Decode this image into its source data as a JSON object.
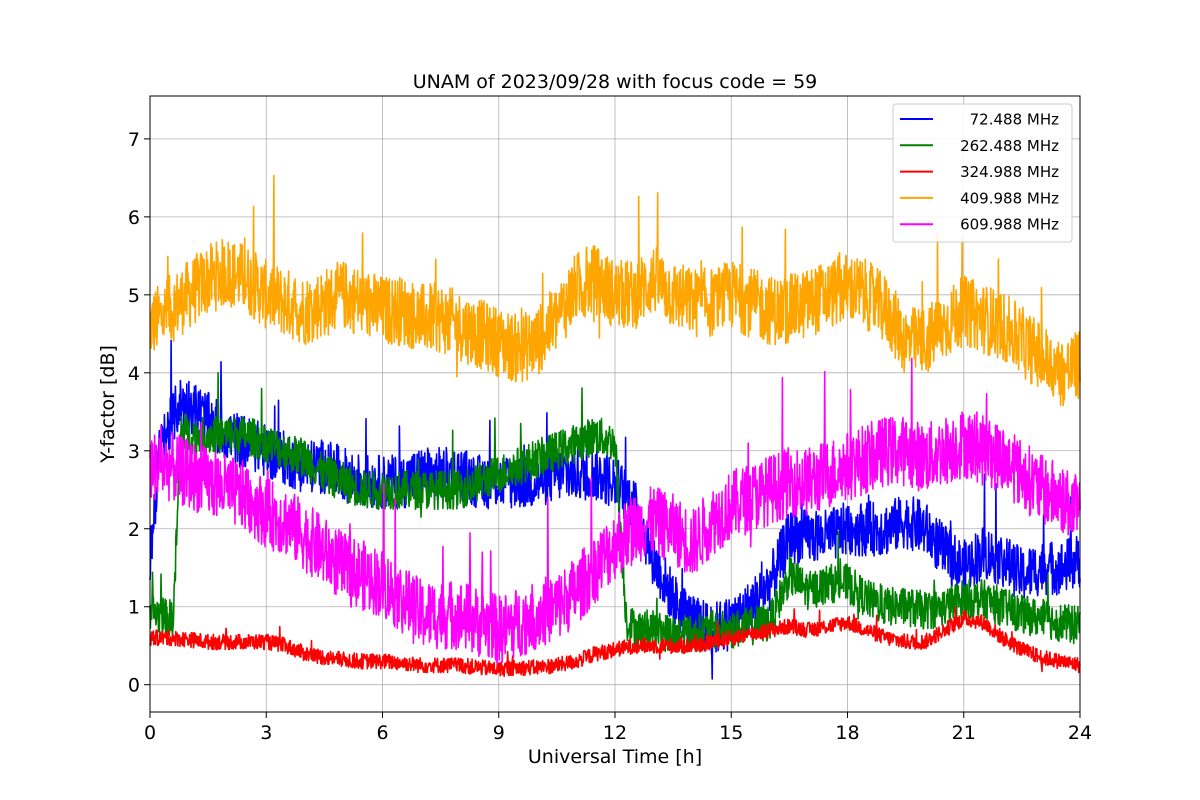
{
  "chart_data": {
    "type": "line",
    "title": "UNAM of 2023/09/28 with focus code = 59",
    "xlabel": "Universal Time [h]",
    "ylabel": "Y-factor [dB]",
    "xlim": [
      0,
      24
    ],
    "ylim": [
      -0.35,
      7.55
    ],
    "xticks": [
      0,
      3,
      6,
      9,
      12,
      15,
      18,
      21,
      24
    ],
    "yticks": [
      0,
      1,
      2,
      3,
      4,
      5,
      6,
      7
    ],
    "grid": true,
    "legend_position": "top-right",
    "series": [
      {
        "name": " 72.488 MHz",
        "color": "#0000ff",
        "x": [
          0,
          0.25,
          0.5,
          0.75,
          1,
          1.5,
          2,
          2.5,
          3,
          3.5,
          4,
          4.5,
          5,
          5.5,
          6,
          6.5,
          7,
          7.5,
          8,
          8.5,
          9,
          9.5,
          10,
          10.5,
          11,
          11.5,
          12,
          12.5,
          13,
          13.5,
          14,
          14.5,
          15,
          15.5,
          16,
          16.5,
          17,
          17.5,
          18,
          18.5,
          19,
          19.5,
          20,
          20.5,
          21,
          21.5,
          22,
          22.5,
          23,
          23.5,
          24
        ],
        "y": [
          1.6,
          3.0,
          3.3,
          3.6,
          3.6,
          3.4,
          3.2,
          3.1,
          3.0,
          2.9,
          2.8,
          2.8,
          2.7,
          2.6,
          2.6,
          2.6,
          2.7,
          2.7,
          2.7,
          2.6,
          2.6,
          2.6,
          2.6,
          2.7,
          2.7,
          2.7,
          2.6,
          2.3,
          1.6,
          1.1,
          0.8,
          0.7,
          0.8,
          1.0,
          1.3,
          1.9,
          1.9,
          1.9,
          2.0,
          2.0,
          2.0,
          2.1,
          2.0,
          1.7,
          1.5,
          1.7,
          1.6,
          1.4,
          1.5,
          1.5,
          1.6
        ],
        "noise": 0.35
      },
      {
        "name": "262.488 MHz",
        "color": "#008000",
        "x": [
          0,
          0.2,
          0.4,
          0.6,
          0.8,
          1,
          1.5,
          2,
          2.5,
          3,
          3.5,
          4,
          4.5,
          5,
          5.5,
          6,
          6.5,
          7,
          7.5,
          8,
          8.5,
          9,
          9.5,
          10,
          10.5,
          11,
          11.5,
          12,
          12.3,
          12.6,
          13,
          13.5,
          14,
          14.5,
          15,
          15.5,
          16,
          16.5,
          17,
          17.5,
          18,
          18.5,
          19,
          19.5,
          20,
          20.5,
          21,
          21.5,
          22,
          22.5,
          23,
          23.5,
          24
        ],
        "y": [
          0.95,
          0.9,
          0.85,
          0.85,
          3.3,
          3.2,
          3.2,
          3.2,
          3.2,
          3.1,
          3.0,
          2.9,
          2.7,
          2.6,
          2.5,
          2.5,
          2.5,
          2.5,
          2.5,
          2.5,
          2.6,
          2.7,
          2.8,
          2.9,
          3.0,
          3.1,
          3.2,
          3.1,
          0.8,
          0.7,
          0.7,
          0.65,
          0.65,
          0.7,
          0.7,
          0.75,
          0.8,
          1.4,
          1.2,
          1.3,
          1.3,
          1.1,
          1.0,
          1.0,
          0.95,
          1.0,
          1.1,
          1.1,
          1.0,
          0.9,
          0.85,
          0.8,
          0.75
        ],
        "noise": 0.25
      },
      {
        "name": "324.988 MHz",
        "color": "#ff0000",
        "x": [
          0,
          0.5,
          1,
          1.5,
          2,
          2.5,
          3,
          3.5,
          4,
          4.5,
          5,
          5.5,
          6,
          6.5,
          7,
          7.5,
          8,
          8.5,
          9,
          9.5,
          10,
          10.5,
          11,
          11.5,
          12,
          12.5,
          13,
          13.5,
          14,
          14.5,
          15,
          15.5,
          16,
          16.5,
          17,
          17.5,
          18,
          18.5,
          19,
          19.5,
          20,
          20.5,
          21,
          21.5,
          22,
          22.5,
          23,
          23.5,
          24
        ],
        "y": [
          0.6,
          0.6,
          0.58,
          0.55,
          0.55,
          0.55,
          0.55,
          0.5,
          0.4,
          0.35,
          0.32,
          0.3,
          0.3,
          0.28,
          0.25,
          0.25,
          0.25,
          0.22,
          0.2,
          0.22,
          0.22,
          0.25,
          0.3,
          0.4,
          0.45,
          0.5,
          0.5,
          0.5,
          0.5,
          0.55,
          0.6,
          0.65,
          0.7,
          0.75,
          0.7,
          0.75,
          0.8,
          0.7,
          0.6,
          0.55,
          0.55,
          0.7,
          0.85,
          0.8,
          0.6,
          0.45,
          0.35,
          0.3,
          0.25
        ],
        "noise": 0.1
      },
      {
        "name": "409.988 MHz",
        "color": "#ffa500",
        "x": [
          0,
          0.5,
          1,
          1.5,
          2,
          2.5,
          3,
          3.5,
          4,
          4.5,
          5,
          5.5,
          6,
          6.5,
          7,
          7.5,
          8,
          8.5,
          9,
          9.5,
          10,
          10.5,
          11,
          11.5,
          12,
          12.5,
          13,
          13.5,
          14,
          14.5,
          15,
          15.5,
          16,
          16.5,
          17,
          17.5,
          18,
          18.5,
          19,
          19.5,
          20,
          20.5,
          21,
          21.5,
          22,
          22.5,
          23,
          23.5,
          24
        ],
        "y": [
          4.6,
          4.8,
          5.0,
          5.2,
          5.3,
          5.2,
          5.0,
          4.9,
          4.8,
          4.9,
          5.0,
          4.9,
          4.8,
          4.8,
          4.7,
          4.7,
          4.6,
          4.5,
          4.4,
          4.3,
          4.4,
          4.7,
          5.1,
          5.2,
          5.0,
          5.0,
          5.2,
          5.0,
          4.9,
          4.9,
          5.0,
          4.9,
          4.8,
          4.8,
          4.9,
          5.0,
          5.1,
          5.0,
          4.8,
          4.4,
          4.4,
          4.6,
          4.8,
          4.7,
          4.6,
          4.4,
          4.2,
          4.0,
          4.1
        ],
        "noise": 0.45
      },
      {
        "name": "609.988 MHz",
        "color": "#ff00ff",
        "x": [
          0,
          0.5,
          1,
          1.5,
          2,
          2.5,
          3,
          3.5,
          4,
          4.5,
          5,
          5.5,
          6,
          6.5,
          7,
          7.5,
          8,
          8.5,
          9,
          9.5,
          10,
          10.5,
          11,
          11.5,
          12,
          12.5,
          13,
          13.5,
          14,
          14.5,
          15,
          15.5,
          16,
          16.5,
          17,
          17.5,
          18,
          18.5,
          19,
          19.5,
          20,
          20.5,
          21,
          21.5,
          22,
          22.5,
          23,
          23.5,
          24
        ],
        "y": [
          2.8,
          2.8,
          2.7,
          2.6,
          2.5,
          2.4,
          2.2,
          2.1,
          1.9,
          1.7,
          1.5,
          1.4,
          1.3,
          1.1,
          0.9,
          0.9,
          0.9,
          0.8,
          0.7,
          0.8,
          0.9,
          1.0,
          1.2,
          1.5,
          1.8,
          2.0,
          2.1,
          2.0,
          1.8,
          2.1,
          2.3,
          2.4,
          2.5,
          2.6,
          2.6,
          2.7,
          2.8,
          2.9,
          3.0,
          3.0,
          2.9,
          3.0,
          3.1,
          3.0,
          2.9,
          2.7,
          2.5,
          2.4,
          2.2
        ],
        "noise": 0.45
      }
    ]
  }
}
